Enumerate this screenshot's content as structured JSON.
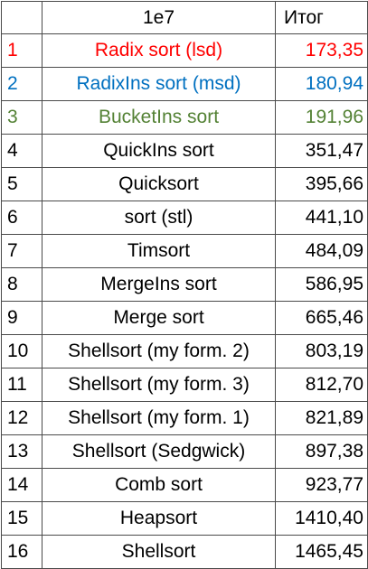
{
  "header": {
    "index": "",
    "name": "1e7",
    "total": "Итог"
  },
  "rows": [
    {
      "index": "1",
      "name": "Radix sort (lsd)",
      "total": "173,35",
      "color": "#ff0000"
    },
    {
      "index": "2",
      "name": "RadixIns sort (msd)",
      "total": "180,94",
      "color": "#0070c0"
    },
    {
      "index": "3",
      "name": "BucketIns sort",
      "total": "191,96",
      "color": "#548235"
    },
    {
      "index": "4",
      "name": "QuickIns sort",
      "total": "351,47",
      "color": "#000000"
    },
    {
      "index": "5",
      "name": "Quicksort",
      "total": "395,66",
      "color": "#000000"
    },
    {
      "index": "6",
      "name": "sort (stl)",
      "total": "441,10",
      "color": "#000000"
    },
    {
      "index": "7",
      "name": "Timsort",
      "total": "484,09",
      "color": "#000000"
    },
    {
      "index": "8",
      "name": "MergeIns sort",
      "total": "586,95",
      "color": "#000000"
    },
    {
      "index": "9",
      "name": "Merge sort",
      "total": "665,46",
      "color": "#000000"
    },
    {
      "index": "10",
      "name": "Shellsort (my form. 2)",
      "total": "803,19",
      "color": "#000000"
    },
    {
      "index": "11",
      "name": "Shellsort (my form. 3)",
      "total": "812,70",
      "color": "#000000"
    },
    {
      "index": "12",
      "name": "Shellsort (my form. 1)",
      "total": "821,89",
      "color": "#000000"
    },
    {
      "index": "13",
      "name": "Shellsort (Sedgwick)",
      "total": "897,38",
      "color": "#000000"
    },
    {
      "index": "14",
      "name": "Comb sort",
      "total": "923,77",
      "color": "#000000"
    },
    {
      "index": "15",
      "name": "Heapsort",
      "total": "1410,40",
      "color": "#000000"
    },
    {
      "index": "16",
      "name": "Shellsort",
      "total": "1465,45",
      "color": "#000000"
    }
  ]
}
